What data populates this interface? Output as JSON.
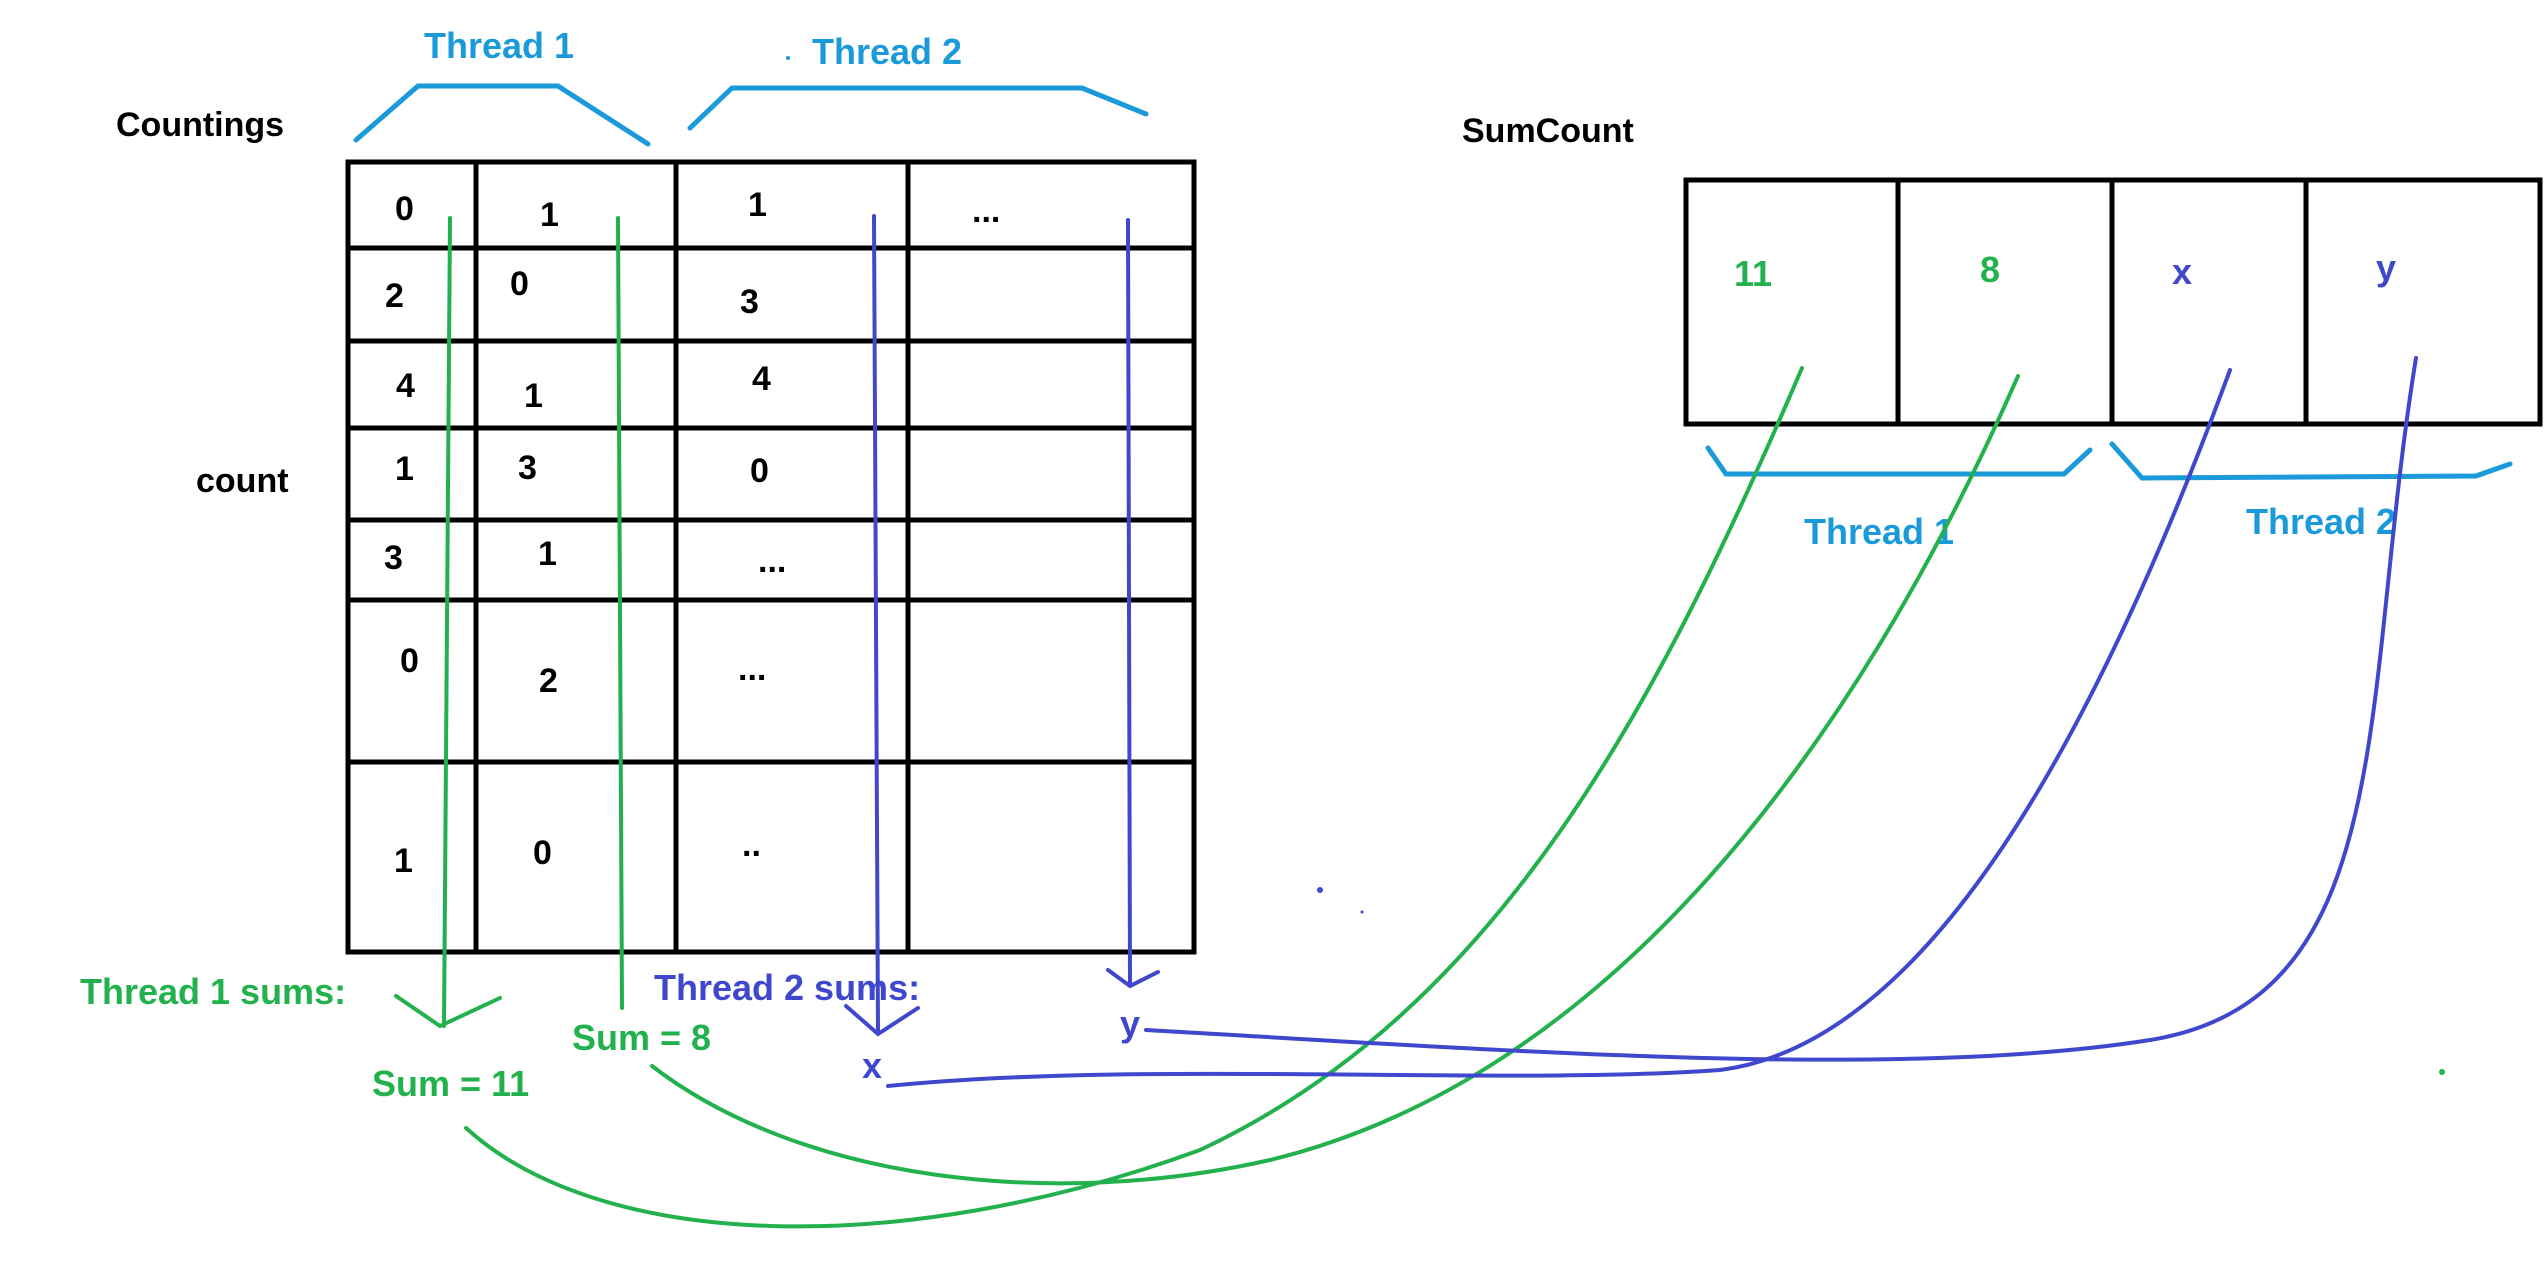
{
  "colors": {
    "ink": "#000000",
    "thread_blue": "#1a9ad9",
    "green": "#22b14c",
    "indigo": "#3f48cc"
  },
  "labels": {
    "countings": "Countings",
    "count": "count",
    "sumcount": "SumCount",
    "thread1_top": "Thread 1",
    "thread2_top": "Thread 2",
    "thread1_right": "Thread 1",
    "thread2_right": "Thread 2",
    "thread1_sums": "Thread 1 sums:",
    "thread2_sums": "Thread 2 sums:",
    "sum_11": "Sum = 11",
    "sum_8": "Sum = 8",
    "x": "x",
    "y": "y"
  },
  "counts_table": {
    "rows": [
      [
        "0",
        "1",
        "1",
        "..."
      ],
      [
        "2",
        "0",
        "3",
        ""
      ],
      [
        "4",
        "1",
        "4",
        ""
      ],
      [
        "1",
        "3",
        "0",
        ""
      ],
      [
        "3",
        "1",
        "...",
        ""
      ],
      [
        "0",
        "2",
        "...",
        ""
      ],
      [
        "1",
        "0",
        "..",
        ""
      ]
    ]
  },
  "sumcount_cells": [
    "11",
    "8",
    "x",
    "y"
  ]
}
